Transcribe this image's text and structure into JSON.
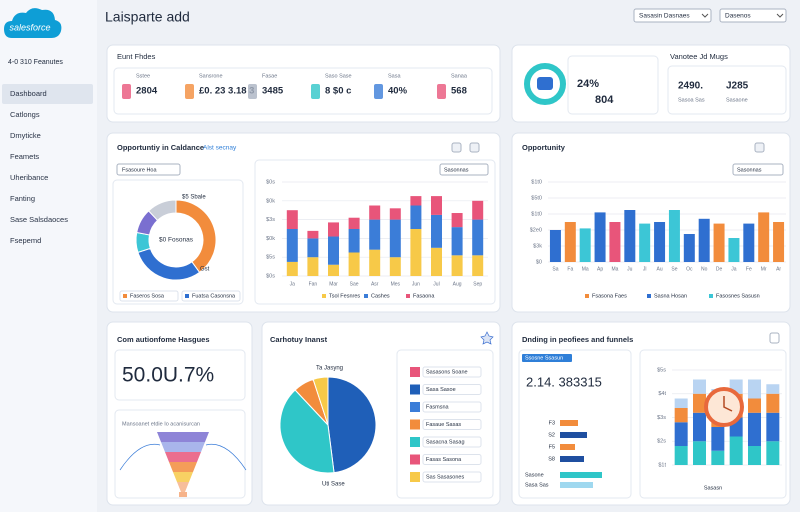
{
  "sidebar": {
    "brand": "salesforce",
    "subtitle": "4-0 310 Feanutes",
    "nav": [
      "Dashboard",
      "Catlongs",
      "Dmyticke",
      "Feamets",
      "Uheribance",
      "Fanting",
      "Sase Salsdaoces",
      "Fsepemd"
    ],
    "active": 0
  },
  "header": {
    "title": "Laisparte add",
    "dropdowns": [
      "Sasasin Dasnaes",
      "Dasenos"
    ]
  },
  "kpi_card": {
    "title": "Eunt Fhdes",
    "metrics": [
      {
        "label": "Sstee",
        "value": "2804"
      },
      {
        "label": "Sansrone",
        "value": "£0. 23 3.18 3"
      },
      {
        "label": "Fasae",
        "value": "3485"
      },
      {
        "label": "Saso Sase",
        "value": "8 $0 c"
      },
      {
        "label": "Sasa",
        "value": "40%"
      },
      {
        "label": "Sanaa",
        "value": "568"
      }
    ]
  },
  "summary_card": {
    "values": [
      "24%",
      "804"
    ],
    "title": "Vanotee Jd Mugs",
    "side_values": [
      "2490.",
      "J285"
    ],
    "side_labels": [
      "Sasoa Sas",
      "Sasaone"
    ]
  },
  "opportunity_card": {
    "title": "Opportuntiy in Caldance",
    "link": "Alst secnay",
    "filter": "Fsasoure Hoa",
    "chart_filter": "Sasonnas",
    "donut": {
      "center": "$0 Fosonas",
      "top_label": "$5 Sbale",
      "bottom_label": "Gst",
      "values": [
        40,
        30,
        8,
        10,
        12
      ],
      "colors": [
        "#f28c3c",
        "#2f6fd0",
        "#3cc6d6",
        "#7a6fd0",
        "#c9ced8"
      ]
    },
    "donut_legend": [
      "Faseros Sosa",
      "Fuatsa Casonsna"
    ],
    "bars": {
      "categories": [
        "Ja",
        "Fan",
        "Mar",
        "Sae",
        "Asr",
        "Mes",
        "Jun",
        "Jul",
        "Aug",
        "Sep"
      ],
      "yticks": [
        "$0s",
        "$0k",
        "$3s",
        "$0k",
        "$5s",
        "$0s"
      ],
      "ylim": [
        0,
        100
      ],
      "series": [
        {
          "name": "Tsol Fesnres",
          "color": "#f7c948",
          "values": [
            15,
            20,
            12,
            25,
            28,
            20,
            50,
            30,
            22,
            22
          ]
        },
        {
          "name": "Cashes",
          "color": "#3b7dd8",
          "values": [
            35,
            20,
            30,
            25,
            32,
            40,
            25,
            35,
            30,
            38
          ]
        },
        {
          "name": "Fasaona",
          "color": "#e8557a",
          "values": [
            20,
            8,
            15,
            12,
            15,
            12,
            10,
            20,
            15,
            20
          ]
        }
      ]
    }
  },
  "trend_card": {
    "title": "Opportunity",
    "filter": "Sasonnas",
    "yticks": [
      "$1t0",
      "$5t0",
      "$1t0",
      "$2e0",
      "$3k",
      "$0"
    ],
    "ylim": [
      0,
      100
    ],
    "categories": [
      "Sa",
      "Fa",
      "Ma",
      "Ap",
      "Ma",
      "Ju",
      "Jl",
      "Au",
      "Se",
      "Oc",
      "No",
      "De",
      "Ja",
      "Fe",
      "Mr",
      "Ar"
    ],
    "values": [
      40,
      50,
      42,
      62,
      50,
      65,
      48,
      50,
      65,
      35,
      54,
      48,
      30,
      48,
      62,
      50
    ],
    "colors": [
      "#2f6fd0",
      "#f28c3c",
      "#3cc6d6",
      "#2f6fd0",
      "#e8557a",
      "#2f6fd0",
      "#3cc6d6",
      "#2f6fd0",
      "#3cc6d6",
      "#2f6fd0",
      "#2f6fd0",
      "#f28c3c",
      "#3cc6d6",
      "#2f6fd0",
      "#f28c3c",
      "#f28c3c"
    ],
    "legend": [
      {
        "name": "Fsasona Faes",
        "color": "#f28c3c"
      },
      {
        "name": "Sasna Hosan",
        "color": "#2f6fd0"
      },
      {
        "name": "Fasosnes Sasusn",
        "color": "#3cc6d6"
      }
    ]
  },
  "conversion_card": {
    "title": "Com autionfome Hasgues",
    "value": "50.0U.7%",
    "caption": "Mansoanet etdie Io acanisurcan"
  },
  "category_card": {
    "title": "Carhotuy Inanst",
    "top_label": "Ta Jasyng",
    "bottom_label": "Uti Sase",
    "values": [
      48,
      40,
      7,
      5
    ],
    "colors": [
      "#1f5fb8",
      "#2fc6c8",
      "#f28c3c",
      "#f7c948"
    ],
    "legend": [
      {
        "name": "Sasasons Soane",
        "color": "#e8557a"
      },
      {
        "name": "Sasa Sasoe",
        "color": "#1f5fb8"
      },
      {
        "name": "Fasmsna",
        "color": "#3b7dd8"
      },
      {
        "name": "Fasaue Sasas",
        "color": "#f28c3c"
      },
      {
        "name": "Sasacna Sasag",
        "color": "#2fc6c8"
      },
      {
        "name": "Fasas Sasona",
        "color": "#e8557a"
      },
      {
        "name": "Sas Sasasones",
        "color": "#f7c948"
      }
    ]
  },
  "funnel_card": {
    "title": "Dnding in peofiees and funnels",
    "label": "Ssosne Ssasun",
    "value": "2.14. 383315",
    "rows": {
      "labels": [
        "F3",
        "S2",
        "F5",
        "S8"
      ],
      "values": [
        30,
        45,
        25,
        40
      ],
      "colors": [
        "#f28c3c",
        "#1f4fa0",
        "#f28c3c",
        "#1f4fa0"
      ]
    },
    "totals": {
      "labels": [
        "Sasone",
        "Sasa Sas"
      ],
      "values": [
        70,
        55
      ]
    },
    "bars": {
      "yticks": [
        "$5s",
        "$4t",
        "$3s",
        "$2s",
        "$1t"
      ],
      "ylim": [
        0,
        100
      ],
      "series": [
        {
          "color": "#2fc6c8",
          "values": [
            20,
            25,
            15,
            30,
            20,
            25
          ]
        },
        {
          "color": "#2f6fd0",
          "values": [
            25,
            30,
            25,
            20,
            35,
            30
          ]
        },
        {
          "color": "#f28c3c",
          "values": [
            15,
            20,
            30,
            25,
            15,
            20
          ]
        },
        {
          "color": "#b9d4f2",
          "values": [
            10,
            15,
            10,
            15,
            20,
            10
          ]
        }
      ]
    },
    "footer": "Sasasn"
  }
}
